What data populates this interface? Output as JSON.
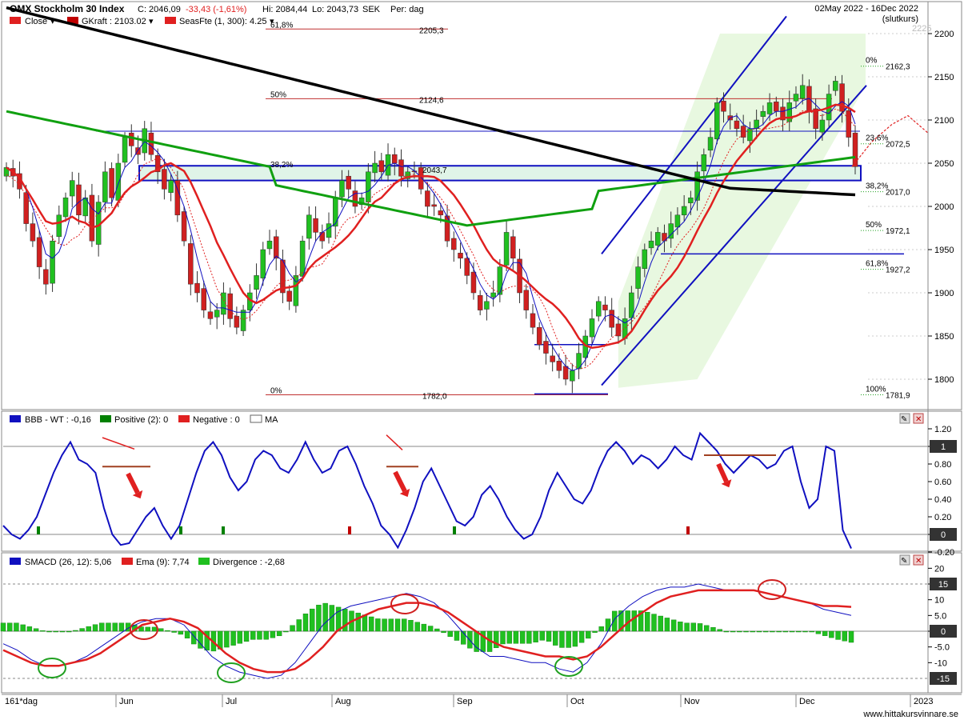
{
  "header": {
    "title": "OMX Stockholm 30 Index",
    "close": "C: 2046,09",
    "change": "-33,43 (-1,61%)",
    "high": "Hi: 2084,44",
    "low": "Lo: 2043,73",
    "currency": "SEK",
    "period": "Per: dag",
    "date_range": "02May 2022 - 16Dec 2022",
    "price_type": "(slutkurs)"
  },
  "legend_main": [
    {
      "label": "Close",
      "color": "#e02020"
    },
    {
      "label": "GKraft : 2103.02",
      "color": "#c00000"
    },
    {
      "label": "SeasFte (1, 300): 4.25",
      "color": "#e02020"
    }
  ],
  "legend_bbb": [
    {
      "label": "BBB - WT : -0,16",
      "color": "#1010c0"
    },
    {
      "label": "Positive (2): 0",
      "color": "#008000"
    },
    {
      "label": "Negative : 0",
      "color": "#e02020"
    },
    {
      "label": "MA",
      "color": "#ffffff"
    }
  ],
  "legend_macd": [
    {
      "label": "SMACD (26, 12): 5,06",
      "color": "#1010c0"
    },
    {
      "label": "Ema (9): 7,74",
      "color": "#e02020"
    },
    {
      "label": "Divergence : -2,68",
      "color": "#20c020"
    }
  ],
  "footer": {
    "period_label": "161*dag",
    "months": [
      "Jun",
      "Jul",
      "Aug",
      "Sep",
      "Oct",
      "Nov",
      "Dec",
      "2023"
    ],
    "watermark": "www.hittakursvinnare.se"
  },
  "fib_labels_left": [
    {
      "pct": "61,8%",
      "value": "2205,3"
    },
    {
      "pct": "50%",
      "value": "2124,6"
    },
    {
      "pct": "38,2%",
      "value": "2043,7"
    },
    {
      "pct": "0%",
      "value": "1782,0"
    }
  ],
  "fib_labels_right": [
    {
      "pct": "0%",
      "value": "2162,3"
    },
    {
      "pct": "23,6%",
      "value": "2072,5"
    },
    {
      "pct": "38,2%",
      "value": "2017,0"
    },
    {
      "pct": "50%",
      "value": "1972,1"
    },
    {
      "pct": "61,8%",
      "value": "1927,2"
    },
    {
      "pct": "100%",
      "value": "1781,9"
    }
  ],
  "chart_data": [
    {
      "type": "candlestick",
      "title": "OMX Stockholm 30 Index",
      "ylim": [
        1780,
        2225
      ],
      "y_ticks": [
        1800,
        1850,
        1900,
        1950,
        2000,
        2050,
        2100,
        2150,
        2200
      ],
      "y_tick_labels": [
        "1800",
        "1850",
        "1900",
        "1950",
        "2000",
        "2050",
        "2100",
        "2150",
        "2200"
      ],
      "top_partial_tick": "2225",
      "x_months": [
        "Jun",
        "Jul",
        "Aug",
        "Sep",
        "Oct",
        "Nov",
        "Dec",
        "2023"
      ],
      "close_approx": [
        2045,
        2035,
        2020,
        1980,
        1960,
        1930,
        1910,
        1960,
        1990,
        2010,
        2030,
        1990,
        2010,
        1960,
        2005,
        2040,
        2010,
        2050,
        2080,
        2070,
        2060,
        2090,
        2060,
        2040,
        2020,
        2030,
        1990,
        1960,
        1910,
        1900,
        1880,
        1870,
        1880,
        1900,
        1870,
        1860,
        1880,
        1900,
        1920,
        1950,
        1960,
        1940,
        1900,
        1890,
        1920,
        1960,
        1990,
        1970,
        1960,
        1980,
        2010,
        2030,
        2020,
        2000,
        2010,
        2040,
        2050,
        2040,
        2060,
        2050,
        2035,
        2040,
        2040,
        2020,
        2000,
        2000,
        1990,
        1960,
        1950,
        1940,
        1920,
        1900,
        1880,
        1890,
        1900,
        1930,
        1970,
        1940,
        1900,
        1880,
        1860,
        1840,
        1830,
        1820,
        1810,
        1800,
        1810,
        1830,
        1850,
        1870,
        1890,
        1880,
        1860,
        1850,
        1870,
        1900,
        1930,
        1950,
        1960,
        1970,
        1960,
        1980,
        1990,
        2000,
        2010,
        2040,
        2060,
        2080,
        2120,
        2110,
        2100,
        2090,
        2080,
        2090,
        2100,
        2110,
        2120,
        2110,
        2100,
        2120,
        2130,
        2140,
        2110,
        2090,
        2100,
        2130,
        2145,
        2110,
        2080,
        2046
      ],
      "moving_averages": [
        {
          "name": "MA long (black)",
          "color": "#000000"
        },
        {
          "name": "MA medium (green)",
          "color": "#10a010"
        },
        {
          "name": "MA short (red)",
          "color": "#e02020"
        },
        {
          "name": "MA fast (blue)",
          "color": "#1010c0"
        }
      ],
      "support_lines": [
        2087,
        2043,
        2030,
        1945
      ]
    },
    {
      "type": "line",
      "title": "BBB - WT : -0,16",
      "ylim": [
        -0.2,
        1.2
      ],
      "y_ticks": [
        -0.2,
        0,
        0.2,
        0.4,
        0.6,
        0.8,
        1,
        1.2
      ],
      "y_tick_labels": [
        "-0.20",
        "0.20",
        "0.40",
        "0.60",
        "0.80",
        "1.20"
      ],
      "boxed_ticks": [
        "1",
        "0"
      ],
      "values": [
        0.1,
        0.0,
        -0.05,
        0.05,
        0.2,
        0.45,
        0.7,
        0.9,
        1.05,
        0.85,
        0.8,
        0.7,
        0.3,
        0.0,
        -0.12,
        -0.1,
        0.05,
        0.2,
        0.3,
        0.1,
        -0.05,
        0.1,
        0.4,
        0.7,
        0.95,
        1.05,
        0.9,
        0.65,
        0.5,
        0.6,
        0.85,
        0.95,
        0.9,
        0.75,
        0.7,
        0.85,
        1.05,
        0.85,
        0.7,
        0.75,
        0.95,
        1.0,
        0.8,
        0.55,
        0.35,
        0.1,
        0.0,
        -0.15,
        0.05,
        0.3,
        0.6,
        0.75,
        0.55,
        0.35,
        0.15,
        0.1,
        0.2,
        0.45,
        0.55,
        0.4,
        0.2,
        0.05,
        -0.05,
        0.0,
        0.2,
        0.5,
        0.7,
        0.55,
        0.4,
        0.35,
        0.5,
        0.75,
        0.95,
        1.05,
        0.95,
        0.8,
        0.9,
        0.85,
        0.75,
        0.85,
        1.0,
        0.9,
        0.85,
        1.15,
        1.05,
        0.95,
        0.8,
        0.7,
        0.8,
        0.9,
        0.85,
        0.75,
        0.8,
        0.95,
        1.0,
        0.6,
        0.3,
        0.4,
        1.0,
        0.95,
        0.05,
        -0.16
      ],
      "positive_bars": [
        true,
        false,
        false,
        true,
        false,
        false,
        false,
        false,
        false,
        false,
        false,
        false,
        false,
        false,
        false,
        false,
        false,
        false,
        false,
        false,
        false,
        false,
        false,
        false,
        false,
        false,
        false,
        false,
        false,
        false,
        false,
        false,
        false,
        false,
        false,
        false,
        false,
        false,
        false,
        false,
        false,
        false,
        false,
        false,
        false,
        false,
        false,
        false,
        false,
        false,
        false,
        false,
        false,
        false,
        false,
        false,
        false,
        false,
        false,
        false,
        false,
        false,
        false,
        false,
        false,
        false,
        false,
        false,
        false,
        false,
        false,
        false,
        false,
        false,
        false,
        false,
        false,
        false,
        false,
        false,
        false,
        false,
        false,
        false,
        false,
        false,
        false,
        false,
        false,
        false,
        false,
        false,
        false,
        false,
        false,
        false,
        false,
        false,
        false,
        false,
        false,
        false
      ]
    },
    {
      "type": "line",
      "title": "SMACD (26, 12): 5,06",
      "ylim": [
        -17,
        20
      ],
      "y_ticks": [
        -10,
        -5,
        0,
        5,
        10,
        15,
        20
      ],
      "y_tick_labels": [
        "-10",
        "-5.0",
        "5.0",
        "10",
        "20"
      ],
      "boxed_ticks": [
        "15",
        "0",
        "-15"
      ],
      "series": [
        {
          "name": "SMACD (26, 12)",
          "color": "#1010c0",
          "values": [
            -4,
            -6,
            -9,
            -11,
            -11,
            -10,
            -8,
            -5,
            -2,
            1,
            3,
            4,
            4,
            2,
            -3,
            -8,
            -11,
            -13,
            -14,
            -15,
            -14,
            -10,
            -4,
            2,
            6,
            8,
            9,
            10,
            11,
            12,
            11,
            9,
            5,
            0,
            -5,
            -8,
            -8,
            -9,
            -10,
            -10,
            -12,
            -13,
            -10,
            -4,
            4,
            8,
            11,
            13,
            14,
            14,
            15,
            14,
            13,
            13,
            13,
            12,
            11,
            10,
            9,
            7,
            6,
            5
          ]
        },
        {
          "name": "Ema (9)",
          "color": "#e02020",
          "values": [
            -6,
            -8,
            -10,
            -11,
            -11,
            -10,
            -9,
            -7,
            -4,
            -1,
            2,
            3,
            4,
            3,
            1,
            -3,
            -7,
            -10,
            -12,
            -13,
            -13,
            -12,
            -9,
            -5,
            0,
            3,
            5,
            7,
            8,
            9,
            9,
            8,
            6,
            3,
            0,
            -3,
            -5,
            -6,
            -7,
            -8,
            -8,
            -9,
            -8,
            -5,
            -1,
            3,
            6,
            9,
            11,
            12,
            13,
            13,
            13,
            13,
            13,
            12,
            11,
            10,
            9,
            8,
            8,
            7.74
          ]
        }
      ]
    }
  ]
}
